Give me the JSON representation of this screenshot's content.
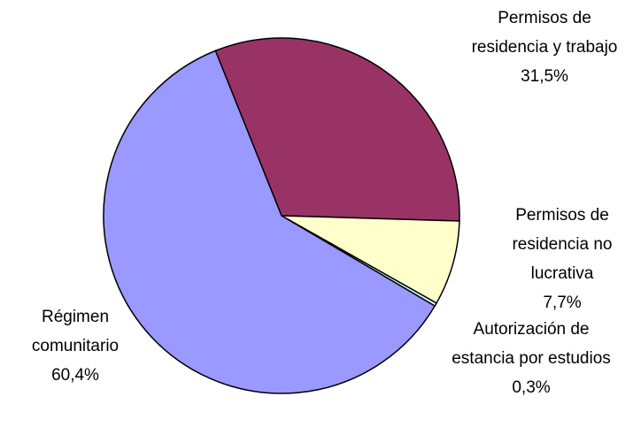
{
  "chart_data": {
    "type": "pie",
    "categories": [
      "Permisos de residencia y trabajo",
      "Permisos de residencia no lucrativa",
      "Autorización de estancia por estudios",
      "Régimen comunitario"
    ],
    "values": [
      31.5,
      7.7,
      0.3,
      60.4
    ],
    "value_labels": [
      "31,5%",
      "7,7%",
      "0,3%",
      "60,4%"
    ],
    "colors": [
      "#993366",
      "#ffffcc",
      "#ccffff",
      "#9999ff"
    ]
  }
}
